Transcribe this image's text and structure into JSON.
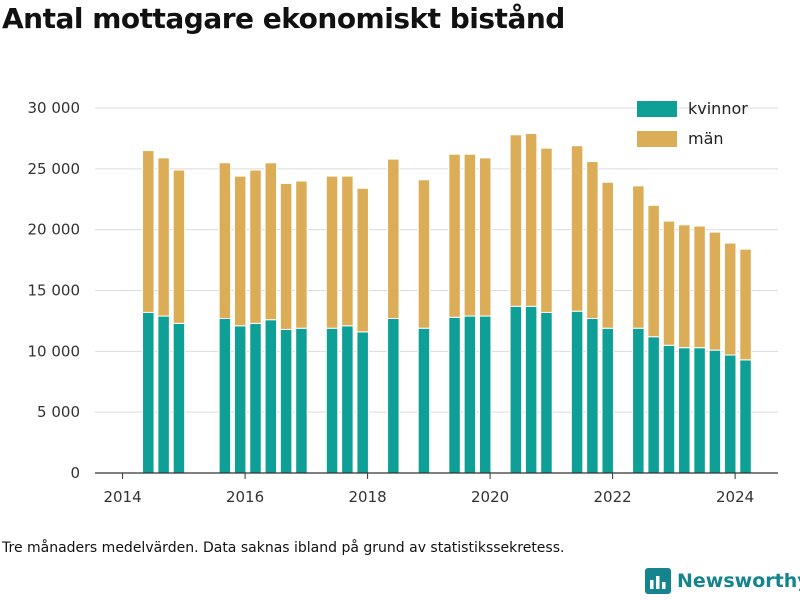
{
  "chart_data": {
    "type": "bar",
    "stacked": true,
    "title": "Antal mottagare ekonomiskt bistånd",
    "xlabel": "",
    "ylabel": "",
    "xlim": [
      2013.55,
      2024.7
    ],
    "ylim": [
      0,
      30000
    ],
    "yticks": [
      0,
      5000,
      10000,
      15000,
      20000,
      25000,
      30000
    ],
    "ytick_labels": [
      "0",
      "5 000",
      "10 000",
      "15 000",
      "20 000",
      "25 000",
      "30 000"
    ],
    "xticks": [
      2014,
      2016,
      2018,
      2020,
      2022,
      2024
    ],
    "xtick_labels": [
      "2014",
      "2016",
      "2018",
      "2020",
      "2022",
      "2024"
    ],
    "grid": "horizontal",
    "legend_position": "top-right",
    "x": [
      2014.42,
      2014.67,
      2014.92,
      2015.67,
      2015.92,
      2016.17,
      2016.42,
      2016.67,
      2016.92,
      2017.42,
      2017.67,
      2017.92,
      2018.42,
      2018.92,
      2019.42,
      2019.67,
      2019.92,
      2020.42,
      2020.67,
      2020.92,
      2021.42,
      2021.67,
      2021.92,
      2022.42,
      2022.67,
      2022.92,
      2023.17,
      2023.42,
      2023.67,
      2023.92,
      2024.17
    ],
    "series": [
      {
        "name": "kvinnor",
        "color": "#0e9f96",
        "values": [
          13200,
          12900,
          12300,
          12700,
          12100,
          12300,
          12600,
          11800,
          11900,
          11900,
          12100,
          11600,
          12700,
          11900,
          12800,
          12900,
          12900,
          13700,
          13700,
          13200,
          13300,
          12700,
          11900,
          11900,
          11200,
          10500,
          10300,
          10300,
          10100,
          9700,
          9300
        ]
      },
      {
        "name": "män",
        "color": "#dcad57",
        "values": [
          13300,
          13000,
          12600,
          12800,
          12300,
          12600,
          12900,
          12000,
          12100,
          12500,
          12300,
          11800,
          13100,
          12200,
          13400,
          13300,
          13000,
          14100,
          14200,
          13500,
          13600,
          12900,
          12000,
          11700,
          10800,
          10200,
          10100,
          10000,
          9700,
          9200,
          9100
        ]
      }
    ]
  },
  "footnote": "Tre månaders medelvärden. Data saknas ibland på grund av statistikssekretess.",
  "brand": {
    "name": "Newsworthy",
    "logo_icon": "bar-chart-logo-icon"
  }
}
